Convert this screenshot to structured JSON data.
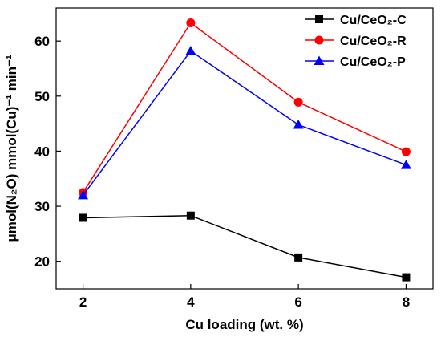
{
  "chart_data": {
    "type": "line",
    "xlabel": "Cu loading (wt. %)",
    "ylabel": "μmol(N₂O) mmol(Cu)⁻¹ min⁻¹",
    "xlim": [
      1.5,
      8.5
    ],
    "ylim": [
      15,
      66
    ],
    "x": [
      2,
      4,
      6,
      8
    ],
    "xticks": [
      "2",
      "4",
      "6",
      "8"
    ],
    "yticks": [
      "20",
      "30",
      "40",
      "50",
      "60"
    ],
    "grid": false,
    "legend_position": "top-right",
    "series": [
      {
        "name": "Cu/CeO₂-C",
        "color": "#000000",
        "marker": "square",
        "values": [
          27.9,
          28.3,
          20.7,
          17.1
        ]
      },
      {
        "name": "Cu/CeO₂-R",
        "color": "#ff0000",
        "marker": "circle",
        "values": [
          32.5,
          63.3,
          48.9,
          39.9
        ]
      },
      {
        "name": "Cu/CeO₂-P",
        "color": "#0000ff",
        "marker": "triangle",
        "values": [
          32.0,
          58.2,
          44.8,
          37.5
        ]
      }
    ]
  }
}
